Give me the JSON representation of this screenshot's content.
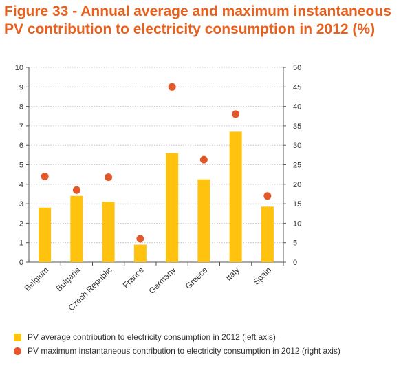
{
  "title_lines": [
    "Figure 33 - Annual average and maximum instantaneous",
    "PV contribution to electricity consumption in 2012 (%)"
  ],
  "colors": {
    "title": "#E8601C",
    "bar": "#FFC20E",
    "dot": "#E2582A",
    "axis": "#555555",
    "grid": "#bbbbbb"
  },
  "chart_data": {
    "type": "bar",
    "categories": [
      "Belgium",
      "Bulgaria",
      "Czech Republic",
      "France",
      "Germany",
      "Greece",
      "Italy",
      "Spain"
    ],
    "series": [
      {
        "name": "PV average contribution to electricity consumption in 2012 (left axis)",
        "type": "bar",
        "axis": "left",
        "values": [
          2.8,
          3.4,
          3.1,
          0.9,
          5.6,
          4.25,
          6.7,
          2.85
        ]
      },
      {
        "name": "PV maximum instantaneous contribution to electricity consumption in 2012 (right axis)",
        "type": "scatter",
        "axis": "right",
        "values": [
          22,
          18.5,
          21.8,
          6,
          45,
          26.3,
          38,
          17
        ]
      }
    ],
    "y_left": {
      "lim": [
        0,
        10
      ],
      "ticks": [
        "0",
        "1",
        "2",
        "3",
        "4",
        "5",
        "6",
        "7",
        "8",
        "9",
        "10"
      ]
    },
    "y_right": {
      "lim": [
        0,
        50
      ],
      "ticks": [
        "0",
        "5",
        "10",
        "15",
        "20",
        "25",
        "30",
        "35",
        "40",
        "45",
        "50"
      ]
    },
    "grid": "horizontal dotted",
    "legend_position": "bottom"
  }
}
